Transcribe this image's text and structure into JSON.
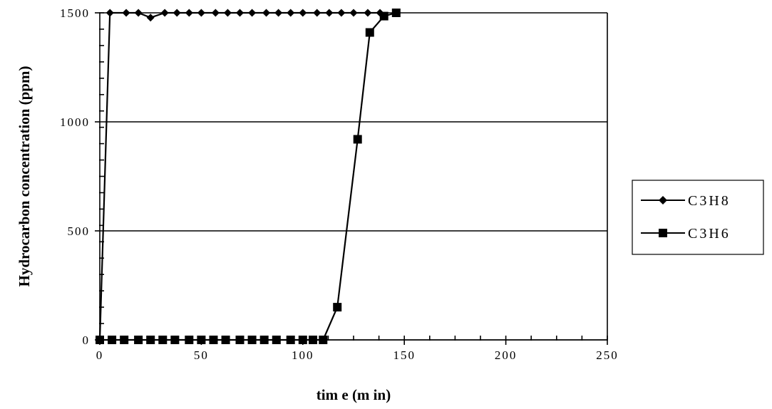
{
  "chart_data": {
    "type": "line",
    "xlabel": "tim e (m in)",
    "ylabel": "Hydrocarbon concentration (ppm)",
    "xlim": [
      0,
      250
    ],
    "ylim": [
      0,
      1500
    ],
    "x_ticks": [
      "0",
      "50",
      "100",
      "150",
      "200",
      "250"
    ],
    "y_ticks": [
      "0",
      "500",
      "1000",
      "1500"
    ],
    "grid": "horizontal",
    "legend": "right",
    "series": [
      {
        "name": "C3H8",
        "marker": "diamond",
        "color": "#000000",
        "points": [
          [
            0,
            0
          ],
          [
            5,
            1500
          ],
          [
            13,
            1500
          ],
          [
            19,
            1500
          ],
          [
            25,
            1478
          ],
          [
            32,
            1500
          ],
          [
            38,
            1500
          ],
          [
            44,
            1500
          ],
          [
            50,
            1500
          ],
          [
            57,
            1500
          ],
          [
            63,
            1500
          ],
          [
            69,
            1500
          ],
          [
            75,
            1500
          ],
          [
            82,
            1500
          ],
          [
            88,
            1500
          ],
          [
            94,
            1500
          ],
          [
            100,
            1500
          ],
          [
            107,
            1500
          ],
          [
            113,
            1500
          ],
          [
            119,
            1500
          ],
          [
            125,
            1500
          ],
          [
            132,
            1500
          ],
          [
            138,
            1500
          ]
        ]
      },
      {
        "name": "C3H6",
        "marker": "square",
        "color": "#000000",
        "points": [
          [
            0,
            0
          ],
          [
            6,
            0
          ],
          [
            12,
            0
          ],
          [
            19,
            0
          ],
          [
            25,
            0
          ],
          [
            31,
            0
          ],
          [
            37,
            0
          ],
          [
            44,
            0
          ],
          [
            50,
            0
          ],
          [
            56,
            0
          ],
          [
            62,
            0
          ],
          [
            69,
            0
          ],
          [
            75,
            0
          ],
          [
            81,
            0
          ],
          [
            87,
            0
          ],
          [
            94,
            0
          ],
          [
            100,
            0
          ],
          [
            105,
            0
          ],
          [
            110,
            0
          ],
          [
            117,
            150
          ],
          [
            127,
            920
          ],
          [
            133,
            1410
          ],
          [
            140,
            1485
          ],
          [
            146,
            1500
          ]
        ]
      }
    ]
  }
}
